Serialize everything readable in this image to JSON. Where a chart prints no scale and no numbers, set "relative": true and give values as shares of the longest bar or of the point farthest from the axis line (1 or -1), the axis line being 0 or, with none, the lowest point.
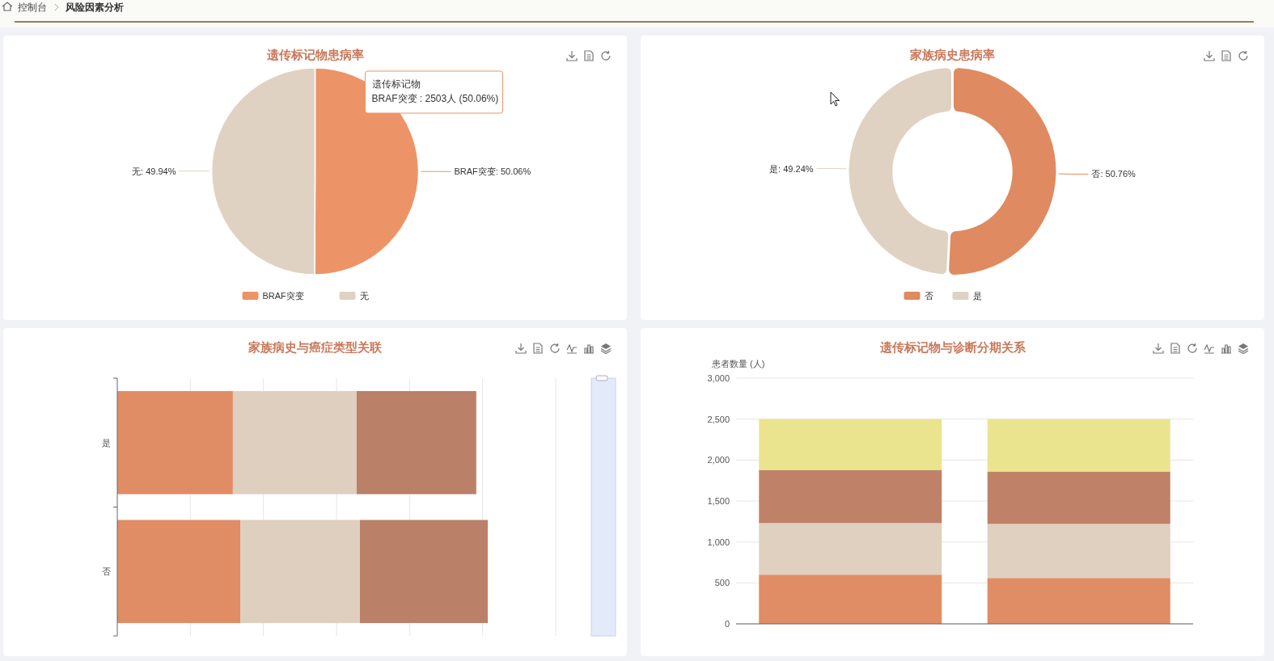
{
  "chart_data": [
    {
      "type": "other",
      "annotations": [
        "控制台",
        "风险因素分析"
      ]
    },
    {
      "type": "pie",
      "title": "遗传标记物患病率",
      "categories": [
        "BRAF突变",
        "无"
      ],
      "values": [
        50.06,
        49.94
      ],
      "colors": [
        "#ec9468",
        "#e0d2c2"
      ],
      "value_labels": [
        "BRAF突变: 50.06%",
        "无: 49.94%"
      ],
      "legend": "bottom",
      "annotations": [
        "遗传标记物",
        "BRAF突变 : 2503人 (50.06%)"
      ]
    },
    {
      "type": "donut",
      "title": "家族病史患病率",
      "categories": [
        "否",
        "是"
      ],
      "values": [
        50.76,
        49.24
      ],
      "colors": [
        "#df8a60",
        "#e0d2c2"
      ],
      "value_labels": [
        "否: 50.76%",
        "是: 49.24%"
      ],
      "legend": "bottom"
    },
    {
      "type": "bar",
      "title": "家族病史与癌症类型关联",
      "orientation": "horizontal",
      "stacked": true,
      "relative": true,
      "grid": "x",
      "categories": [
        "是",
        "否"
      ],
      "series": [
        {
          "color": "#e08c64",
          "values": [
            0.312,
            0.332
          ]
        },
        {
          "color": "#dfcfbf",
          "values": [
            0.334,
            0.323
          ]
        },
        {
          "color": "#bb8068",
          "values": [
            0.323,
            0.345
          ]
        }
      ]
    },
    {
      "type": "bar",
      "title": "遗传标记物与诊断分期关系",
      "ylabel": "患者数量 (人)",
      "stacked": true,
      "grid": "y",
      "categories": [
        null,
        null
      ],
      "ylim": [
        0,
        3000
      ],
      "yticks": [
        0,
        500,
        {
          "value": 1000,
          "label": "1,000"
        },
        {
          "value": 1500,
          "label": "1,500"
        },
        {
          "value": 2000,
          "label": "2,000"
        },
        {
          "value": 2500,
          "label": "2,500"
        },
        {
          "value": 3000,
          "label": "3,000"
        }
      ],
      "series": [
        {
          "color": "#e08c64",
          "values": [
            600,
            560
          ]
        },
        {
          "color": "#dfd0c0",
          "values": [
            630,
            660
          ]
        },
        {
          "color": "#bf8269",
          "values": [
            650,
            640
          ]
        },
        {
          "color": "#ebe48e",
          "values": [
            620,
            640
          ]
        }
      ]
    }
  ]
}
